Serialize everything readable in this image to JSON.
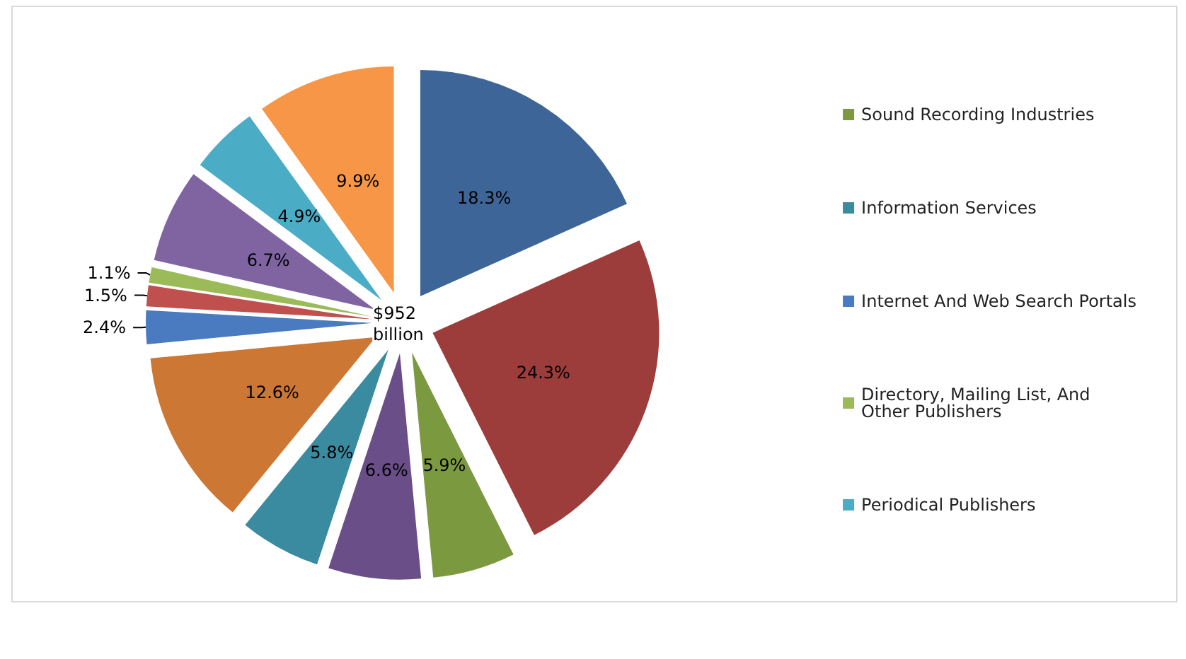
{
  "chart_data": {
    "type": "pie",
    "categories": [
      null,
      null,
      "Sound Recording Industries",
      null,
      "Information Services",
      null,
      "Internet And Web Search Portals",
      null,
      "Directory, Mailing List, And Other Publishers",
      null,
      "Periodical Publishers",
      null
    ],
    "values": [
      18.3,
      24.3,
      5.9,
      6.6,
      5.8,
      12.6,
      2.4,
      1.5,
      1.1,
      6.7,
      4.9,
      9.9
    ],
    "colors": [
      "#3e6598",
      "#9d3d3b",
      "#7b9a40",
      "#6a4e88",
      "#3a8aa0",
      "#cc7733",
      "#4a7bc0",
      "#c0504d",
      "#9bbb59",
      "#8064a2",
      "#4bacc6",
      "#f79646"
    ],
    "value_labels": [
      "18.3%",
      "24.3%",
      "5.9%",
      "6.6%",
      "5.8%",
      "12.6%",
      "2.4%",
      "1.5%",
      "1.1%",
      "6.7%",
      "4.9%",
      "9.9%"
    ],
    "annotations": [
      "$952 billion"
    ],
    "legend": "right"
  }
}
